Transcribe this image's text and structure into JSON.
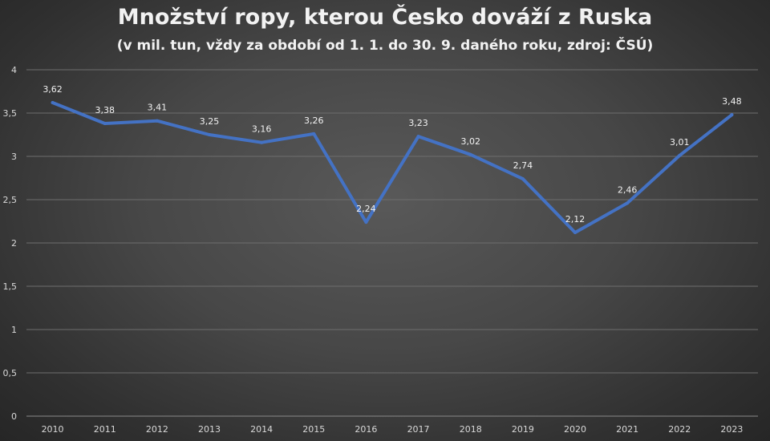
{
  "chart_data": {
    "type": "line",
    "title": "Množství ropy, kterou Česko dováží z Ruska",
    "subtitle": "(v mil. tun, vždy za období od 1. 1. do 30. 9. daného roku, zdroj: ČSÚ)",
    "xlabel": "",
    "ylabel": "",
    "categories": [
      "2010",
      "2011",
      "2012",
      "2013",
      "2014",
      "2015",
      "2016",
      "2017",
      "2018",
      "2019",
      "2020",
      "2021",
      "2022",
      "2023"
    ],
    "series": [
      {
        "values": [
          3.62,
          3.38,
          3.41,
          3.25,
          3.16,
          3.26,
          2.24,
          3.23,
          3.02,
          2.74,
          2.12,
          2.46,
          3.01,
          3.48
        ],
        "labels": [
          "3,62",
          "3,38",
          "3,41",
          "3,25",
          "3,16",
          "3,26",
          "2,24",
          "3,23",
          "3,02",
          "2,74",
          "2,12",
          "2,46",
          "3,01",
          "3,48"
        ],
        "color": "#4472c4"
      }
    ],
    "ylim": [
      0,
      4
    ],
    "yticks": [
      0,
      0.5,
      1,
      1.5,
      2,
      2.5,
      3,
      3.5,
      4
    ],
    "ytick_labels": [
      "0",
      "0,5",
      "1",
      "1,5",
      "2",
      "2,5",
      "3",
      "3,5",
      "4"
    ],
    "grid": true,
    "legend": "none"
  }
}
